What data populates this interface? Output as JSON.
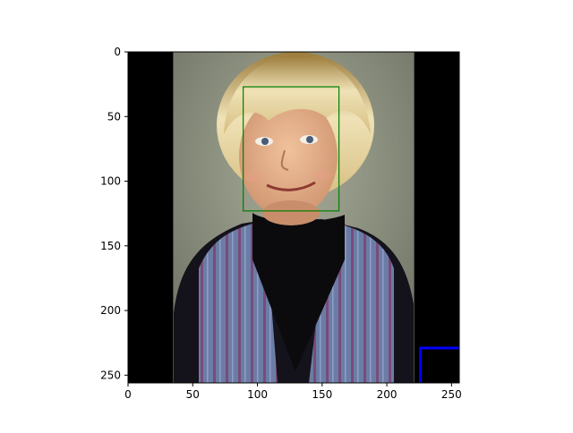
{
  "chart_data": {
    "type": "image",
    "title": "",
    "xlabel": "",
    "ylabel": "",
    "xlim": [
      0,
      256
    ],
    "ylim": [
      256,
      0
    ],
    "y_inverted": true,
    "x_ticks": [
      0,
      50,
      100,
      150,
      200,
      250
    ],
    "y_ticks": [
      0,
      50,
      100,
      150,
      200,
      250
    ],
    "image": {
      "description": "Cropped portrait photo of a young blond boy wearing a black turtleneck and a striped blue/purple sweater vest, with black padding bars on left and right.",
      "photo_x_range": [
        35,
        221
      ],
      "padding_color": "#000000"
    },
    "annotations": [
      {
        "name": "face-box",
        "shape": "rectangle",
        "color": "#008000",
        "x": [
          89,
          163
        ],
        "y": [
          27,
          123
        ]
      },
      {
        "name": "corner-marker",
        "shape": "polyline",
        "color": "#0000ff",
        "points": [
          [
            226,
            256
          ],
          [
            226,
            229
          ],
          [
            256,
            229
          ]
        ]
      }
    ]
  }
}
